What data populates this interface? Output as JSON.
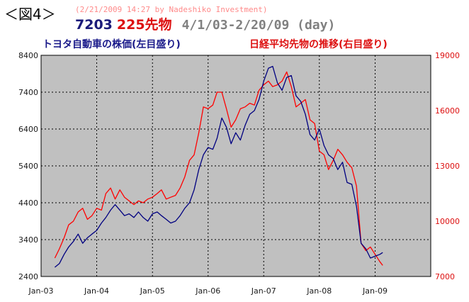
{
  "header": {
    "figure_label": "＜図4＞",
    "credit": "(2/21/2009 14:27 by Nadeshiko Investment)",
    "title_code1": "7203",
    "title_code2": "225先物",
    "title_range": "4/1/03-2/20/09 (day)"
  },
  "colors": {
    "plot_bg": "#c0c0c0",
    "left_series": "#000080",
    "right_series": "#ff0000",
    "left_axis_text": "#1a1a1a",
    "right_axis_text": "#dd1010"
  },
  "chart_data": {
    "type": "line",
    "x_axis": {
      "ticks": [
        "Jan-03",
        "Jan-04",
        "Jan-05",
        "Jan-06",
        "Jan-07",
        "Jan-08",
        "Jan-09"
      ],
      "range": [
        "2003-01-01",
        "2010-01-01"
      ]
    },
    "y_left": {
      "min": 2400,
      "max": 8400,
      "ticks": [
        2400,
        3400,
        4400,
        5400,
        6400,
        7400,
        8400
      ]
    },
    "y_right": {
      "min": 7000,
      "max": 19000,
      "ticks": [
        7000,
        10000,
        13000,
        16000,
        19000
      ]
    },
    "grid": true,
    "series": [
      {
        "name": "トヨタ自動車の株価(左目盛り)",
        "axis": "left",
        "x": [
          "2003-04-01",
          "2003-05-01",
          "2003-06-01",
          "2003-07-01",
          "2003-08-01",
          "2003-09-01",
          "2003-10-01",
          "2003-11-01",
          "2003-12-01",
          "2004-01-01",
          "2004-02-01",
          "2004-03-01",
          "2004-04-01",
          "2004-05-01",
          "2004-06-01",
          "2004-07-01",
          "2004-08-01",
          "2004-09-01",
          "2004-10-01",
          "2004-11-01",
          "2004-12-01",
          "2005-01-01",
          "2005-02-01",
          "2005-03-01",
          "2005-04-01",
          "2005-05-01",
          "2005-06-01",
          "2005-07-01",
          "2005-08-01",
          "2005-09-01",
          "2005-10-01",
          "2005-11-01",
          "2005-12-01",
          "2006-01-01",
          "2006-02-01",
          "2006-03-01",
          "2006-04-01",
          "2006-05-01",
          "2006-06-01",
          "2006-07-01",
          "2006-08-01",
          "2006-09-01",
          "2006-10-01",
          "2006-11-01",
          "2006-12-01",
          "2007-01-01",
          "2007-02-01",
          "2007-03-01",
          "2007-04-01",
          "2007-05-01",
          "2007-06-01",
          "2007-07-01",
          "2007-08-01",
          "2007-09-01",
          "2007-10-01",
          "2007-11-01",
          "2007-12-01",
          "2008-01-01",
          "2008-02-01",
          "2008-03-01",
          "2008-04-01",
          "2008-05-01",
          "2008-06-01",
          "2008-07-01",
          "2008-08-01",
          "2008-09-01",
          "2008-10-01",
          "2008-11-01",
          "2008-12-01",
          "2009-01-01",
          "2009-02-01",
          "2009-02-20"
        ],
        "values": [
          2650,
          2750,
          3000,
          3200,
          3350,
          3550,
          3300,
          3450,
          3550,
          3650,
          3850,
          4000,
          4200,
          4350,
          4200,
          4050,
          4100,
          4000,
          4150,
          4000,
          3900,
          4100,
          4150,
          4050,
          3950,
          3850,
          3900,
          4050,
          4250,
          4400,
          4750,
          5300,
          5700,
          5900,
          5850,
          6150,
          6700,
          6450,
          6000,
          6300,
          6100,
          6500,
          6800,
          6900,
          7200,
          7700,
          8050,
          8100,
          7650,
          7450,
          7800,
          7850,
          7300,
          7150,
          6800,
          6250,
          6100,
          6400,
          5950,
          5700,
          5600,
          5300,
          5500,
          4950,
          4900,
          4300,
          3300,
          3150,
          2900,
          2950,
          3000,
          3050
        ]
      },
      {
        "name": "日経平均先物の推移(右目盛り)",
        "axis": "right",
        "x": [
          "2003-04-01",
          "2003-05-01",
          "2003-06-01",
          "2003-07-01",
          "2003-08-01",
          "2003-09-01",
          "2003-10-01",
          "2003-11-01",
          "2003-12-01",
          "2004-01-01",
          "2004-02-01",
          "2004-03-01",
          "2004-04-01",
          "2004-05-01",
          "2004-06-01",
          "2004-07-01",
          "2004-08-01",
          "2004-09-01",
          "2004-10-01",
          "2004-11-01",
          "2004-12-01",
          "2005-01-01",
          "2005-02-01",
          "2005-03-01",
          "2005-04-01",
          "2005-05-01",
          "2005-06-01",
          "2005-07-01",
          "2005-08-01",
          "2005-09-01",
          "2005-10-01",
          "2005-11-01",
          "2005-12-01",
          "2006-01-01",
          "2006-02-01",
          "2006-03-01",
          "2006-04-01",
          "2006-05-01",
          "2006-06-01",
          "2006-07-01",
          "2006-08-01",
          "2006-09-01",
          "2006-10-01",
          "2006-11-01",
          "2006-12-01",
          "2007-01-01",
          "2007-02-01",
          "2007-03-01",
          "2007-04-01",
          "2007-05-01",
          "2007-06-01",
          "2007-07-01",
          "2007-08-01",
          "2007-09-01",
          "2007-10-01",
          "2007-11-01",
          "2007-12-01",
          "2008-01-01",
          "2008-02-01",
          "2008-03-01",
          "2008-04-01",
          "2008-05-01",
          "2008-06-01",
          "2008-07-01",
          "2008-08-01",
          "2008-09-01",
          "2008-10-01",
          "2008-11-01",
          "2008-12-01",
          "2009-01-01",
          "2009-02-01",
          "2009-02-20"
        ],
        "values": [
          8000,
          8500,
          9100,
          9800,
          10000,
          10500,
          10700,
          10100,
          10300,
          10700,
          10600,
          11500,
          11800,
          11200,
          11700,
          11300,
          11100,
          10900,
          11100,
          11000,
          11200,
          11300,
          11500,
          11700,
          11200,
          11300,
          11400,
          11800,
          12400,
          13300,
          13600,
          14800,
          16200,
          16100,
          16300,
          17000,
          17000,
          16100,
          15100,
          15500,
          16100,
          16200,
          16400,
          16300,
          17100,
          17400,
          17600,
          17300,
          17400,
          17600,
          18100,
          17300,
          16200,
          16400,
          16600,
          15500,
          15300,
          13800,
          13600,
          12800,
          13300,
          13900,
          13600,
          13200,
          12900,
          11900,
          8800,
          8400,
          8600,
          8200,
          7800,
          7600
        ]
      }
    ]
  }
}
